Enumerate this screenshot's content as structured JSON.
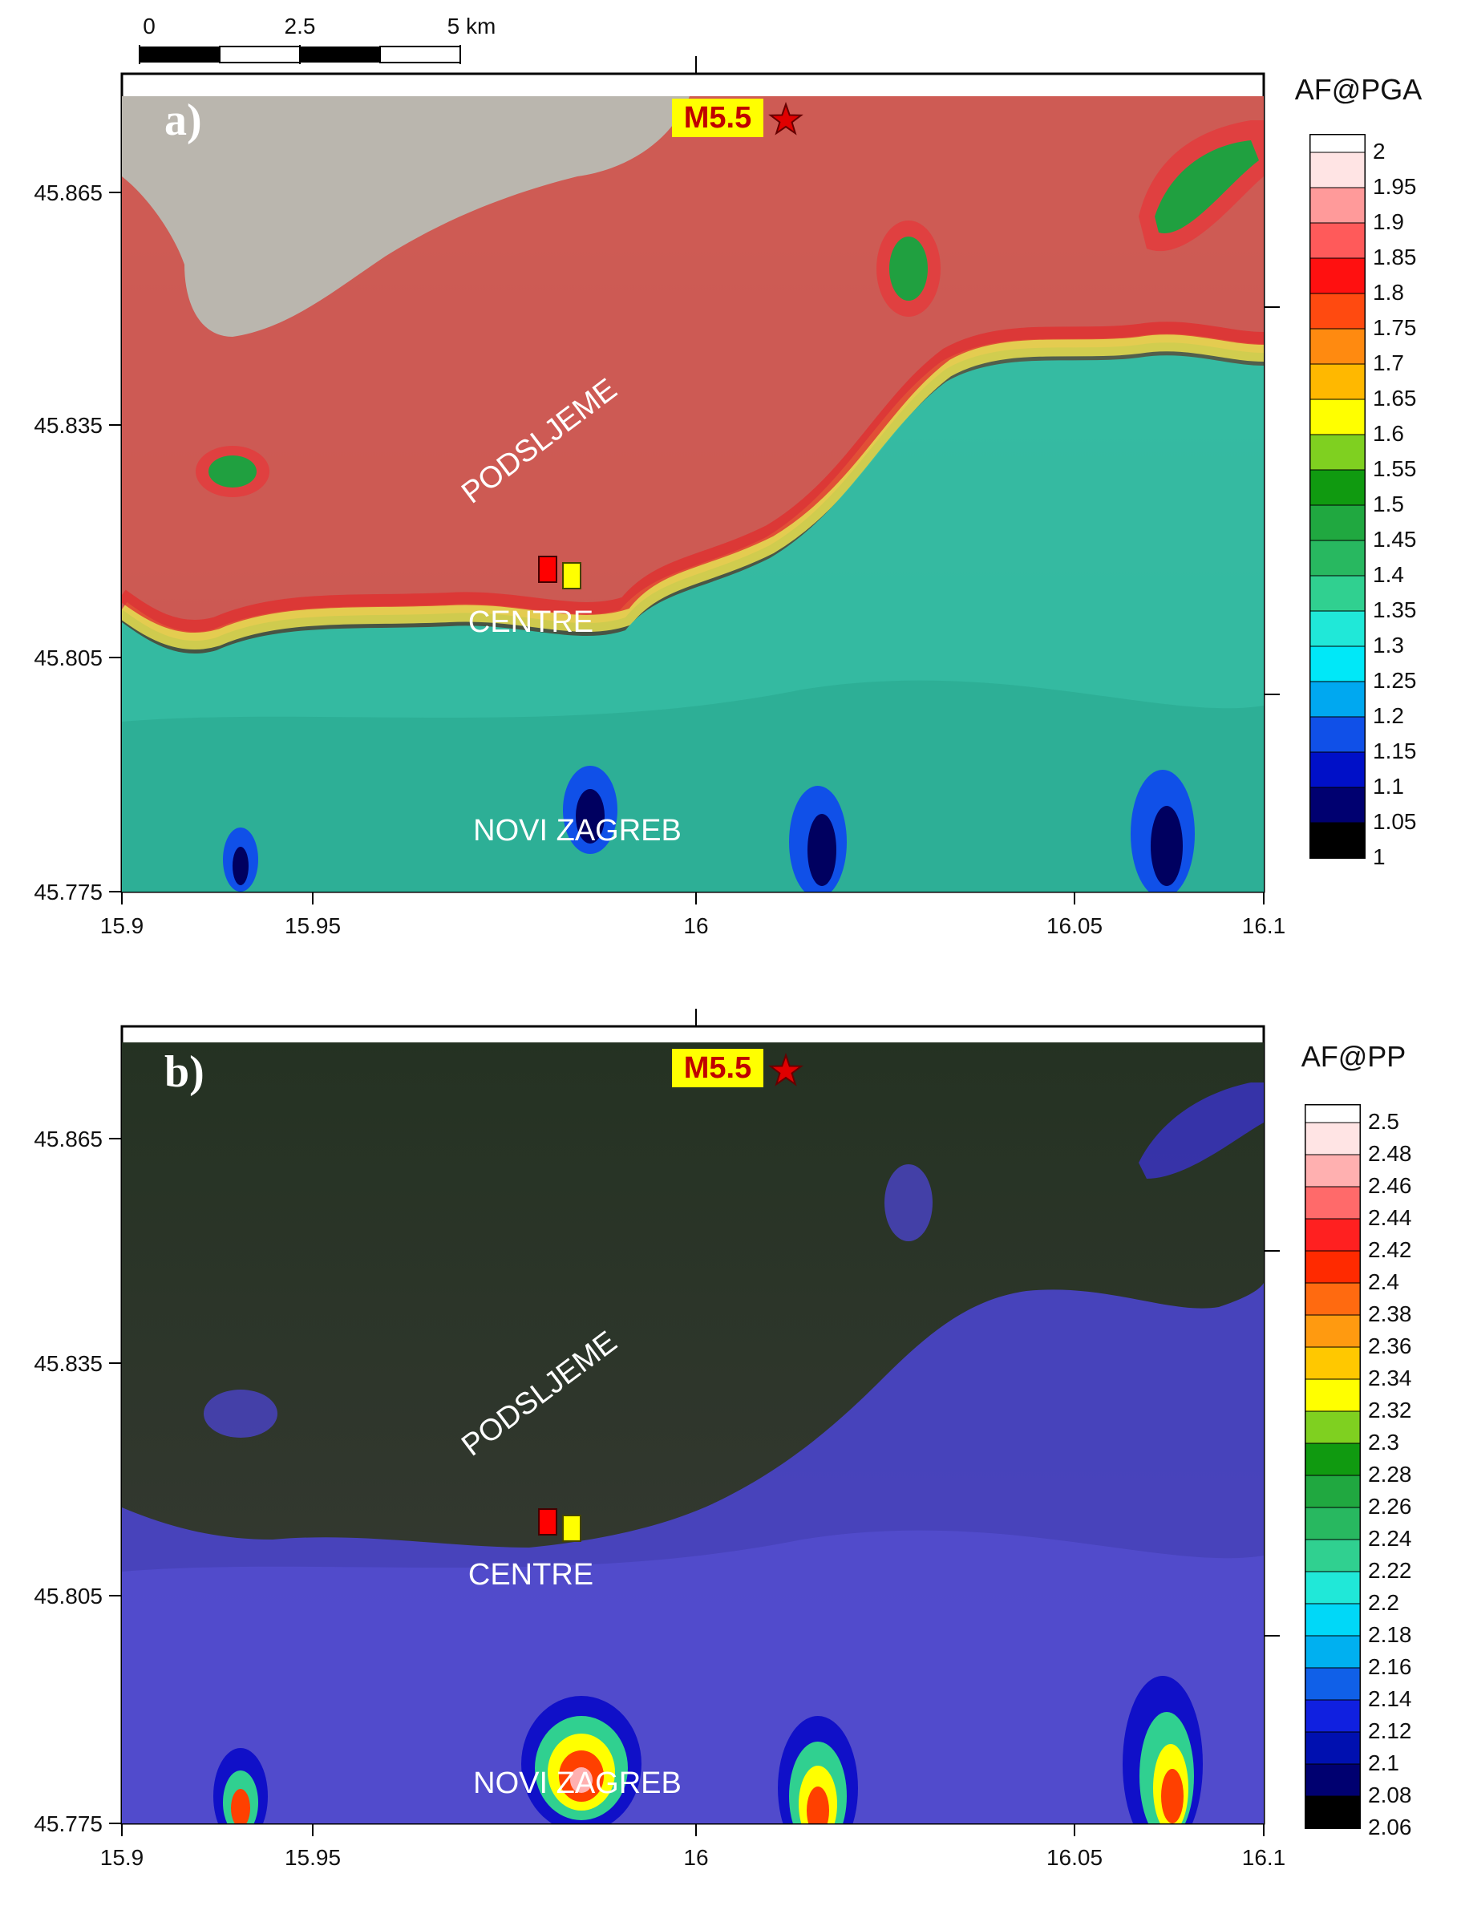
{
  "scale_bar": {
    "ticks": [
      "0",
      "2.5",
      "5 km"
    ]
  },
  "axes": {
    "x_ticks": [
      "15.9",
      "15.95",
      "16",
      "16.05",
      "16.1"
    ],
    "y_ticks": [
      "45.865",
      "45.835",
      "45.805",
      "45.775"
    ]
  },
  "panels": [
    {
      "label": "a)",
      "legend_title": "AF@PGA",
      "legend_values": [
        "2",
        "1.95",
        "1.9",
        "1.85",
        "1.8",
        "1.75",
        "1.7",
        "1.65",
        "1.6",
        "1.55",
        "1.5",
        "1.45",
        "1.4",
        "1.35",
        "1.3",
        "1.25",
        "1.2",
        "1.15",
        "1.1",
        "1.05",
        "1"
      ],
      "legend_colors": [
        "#ffffff",
        "#ffe4e4",
        "#ff9a9a",
        "#ff5a5a",
        "#ff1010",
        "#ff4a10",
        "#ff8a10",
        "#ffb800",
        "#ffff00",
        "#7fd020",
        "#109a10",
        "#20a840",
        "#28b860",
        "#30d090",
        "#20e8d8",
        "#00e8f8",
        "#00a8f0",
        "#1050e8",
        "#0010c8",
        "#000070",
        "#000000"
      ]
    },
    {
      "label": "b)",
      "legend_title": "AF@PP",
      "legend_values": [
        "2.5",
        "2.48",
        "2.46",
        "2.44",
        "2.42",
        "2.4",
        "2.38",
        "2.36",
        "2.34",
        "2.32",
        "2.3",
        "2.28",
        "2.26",
        "2.24",
        "2.22",
        "2.2",
        "2.18",
        "2.16",
        "2.14",
        "2.12",
        "2.1",
        "2.08",
        "2.06"
      ],
      "legend_colors": [
        "#ffffff",
        "#ffe4e4",
        "#ffb0b0",
        "#ff6a6a",
        "#ff2020",
        "#ff2a00",
        "#ff6a10",
        "#ff9a10",
        "#ffc800",
        "#ffff00",
        "#7fd020",
        "#109a10",
        "#20a840",
        "#28b860",
        "#30d090",
        "#20e8d8",
        "#00d8f8",
        "#00b0f0",
        "#1060e8",
        "#1020e0",
        "#0010b0",
        "#000070",
        "#000000"
      ]
    }
  ],
  "places": {
    "epicenter": "M5.5",
    "podsljeme": "PODSLJEME",
    "centre": "CENTRE",
    "novi_zagreb": "NOVI ZAGREB"
  },
  "colors": {
    "red_marker": "#ff0000",
    "yellow_marker": "#ffff00",
    "star": "#e00000"
  },
  "icons": {
    "epicenter": "star-icon"
  }
}
